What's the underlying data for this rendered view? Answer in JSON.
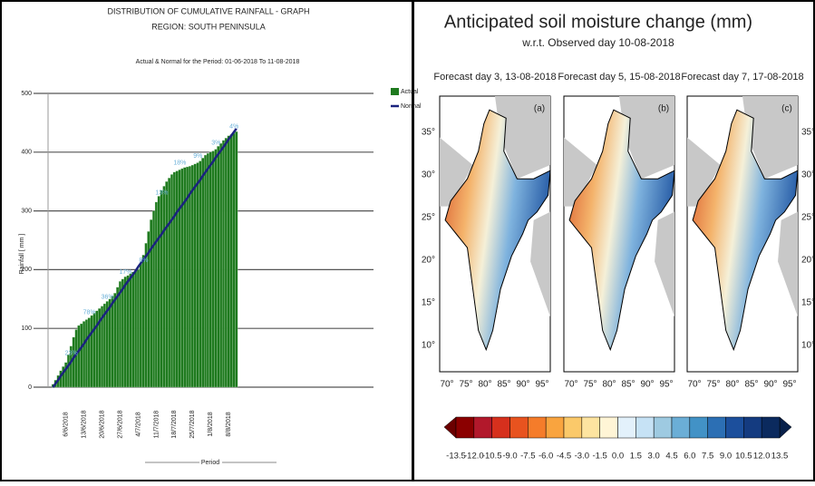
{
  "chart_data": {
    "type": "bar",
    "title": "DISTRIBUTION OF CUMULATIVE RAINFALL - GRAPH",
    "subtitle": "REGION:  SOUTH PENINSULA",
    "period": "Actual & Normal for the Period: 01-06-2018 To 11-08-2018",
    "y_label": "Rainfall [ mm ]",
    "x_label": "Period",
    "ylim": [
      0,
      500
    ],
    "yticks": [
      0,
      100,
      200,
      300,
      400,
      500
    ],
    "grid": true,
    "categories": [
      null,
      null,
      null,
      null,
      null,
      "6/6/2018",
      null,
      null,
      null,
      null,
      null,
      null,
      "13/6/2018",
      null,
      null,
      null,
      null,
      null,
      null,
      "20/6/2018",
      null,
      null,
      null,
      null,
      null,
      null,
      "27/6/2018",
      null,
      null,
      null,
      null,
      null,
      null,
      "4/7/2018",
      null,
      null,
      null,
      null,
      null,
      null,
      "11/7/2018",
      null,
      null,
      null,
      null,
      null,
      null,
      "18/7/2018",
      null,
      null,
      null,
      null,
      null,
      null,
      "25/7/2018",
      null,
      null,
      null,
      null,
      null,
      null,
      "1/8/2018",
      null,
      null,
      null,
      null,
      null,
      null,
      "8/8/2018",
      null,
      null,
      null
    ],
    "series": [
      {
        "name": "Actual",
        "type": "bar",
        "color": "#1f7a1f",
        "values": [
          5,
          12,
          20,
          28,
          35,
          42,
          55,
          70,
          85,
          98,
          105,
          108,
          112,
          115,
          118,
          122,
          126,
          130,
          134,
          138,
          142,
          146,
          150,
          155,
          160,
          170,
          180,
          184,
          188,
          190,
          193,
          196,
          198,
          200,
          210,
          225,
          245,
          265,
          285,
          300,
          315,
          325,
          335,
          342,
          350,
          356,
          362,
          366,
          368,
          370,
          372,
          374,
          375,
          376,
          378,
          380,
          382,
          385,
          390,
          395,
          398,
          400,
          402,
          405,
          410,
          415,
          420,
          424,
          428,
          430,
          432,
          435
        ]
      },
      {
        "name": "Normal",
        "type": "line",
        "color": "#1a237e",
        "values": [
          0,
          6,
          12,
          19,
          25,
          31,
          37,
          43,
          50,
          56,
          62,
          68,
          74,
          81,
          87,
          93,
          99,
          105,
          112,
          118,
          124,
          130,
          136,
          143,
          149,
          155,
          161,
          167,
          174,
          180,
          186,
          192,
          198,
          205,
          211,
          217,
          223,
          229,
          236,
          242,
          248,
          254,
          260,
          267,
          273,
          279,
          285,
          291,
          298,
          304,
          310,
          316,
          322,
          329,
          335,
          341,
          347,
          353,
          360,
          366,
          372,
          378,
          384,
          391,
          397,
          403,
          409,
          415,
          422,
          428,
          434,
          440
        ]
      }
    ],
    "annotations": [
      "23%",
      "78%",
      "36%",
      "17%",
      "8%",
      "13%",
      "18%",
      "9%",
      "3%",
      "4%"
    ]
  },
  "maps": {
    "title": "Anticipated soil moisture change (mm)",
    "subtitle": "w.r.t. Observed day 10-08-2018",
    "panels": [
      {
        "title": "Forecast day 3, 13-08-2018",
        "tag": "(a)"
      },
      {
        "title": "Forecast day 5, 15-08-2018",
        "tag": "(b)"
      },
      {
        "title": "Forecast day 7, 17-08-2018",
        "tag": "(c)"
      }
    ],
    "lat_labels": [
      "35°",
      "30°",
      "25°",
      "20°",
      "15°",
      "10°"
    ],
    "lon_labels": [
      "70°",
      "75°",
      "80°",
      "85°",
      "90°",
      "95°"
    ],
    "colorbar_labels": [
      "-13.5",
      "-12.0",
      "-10.5",
      "-9.0",
      "-7.5",
      "-6.0",
      "-4.5",
      "-3.0",
      "-1.5",
      "0.0",
      "1.5",
      "3.0",
      "4.5",
      "6.0",
      "7.5",
      "9.0",
      "10.5",
      "12.0",
      "13.5"
    ]
  }
}
